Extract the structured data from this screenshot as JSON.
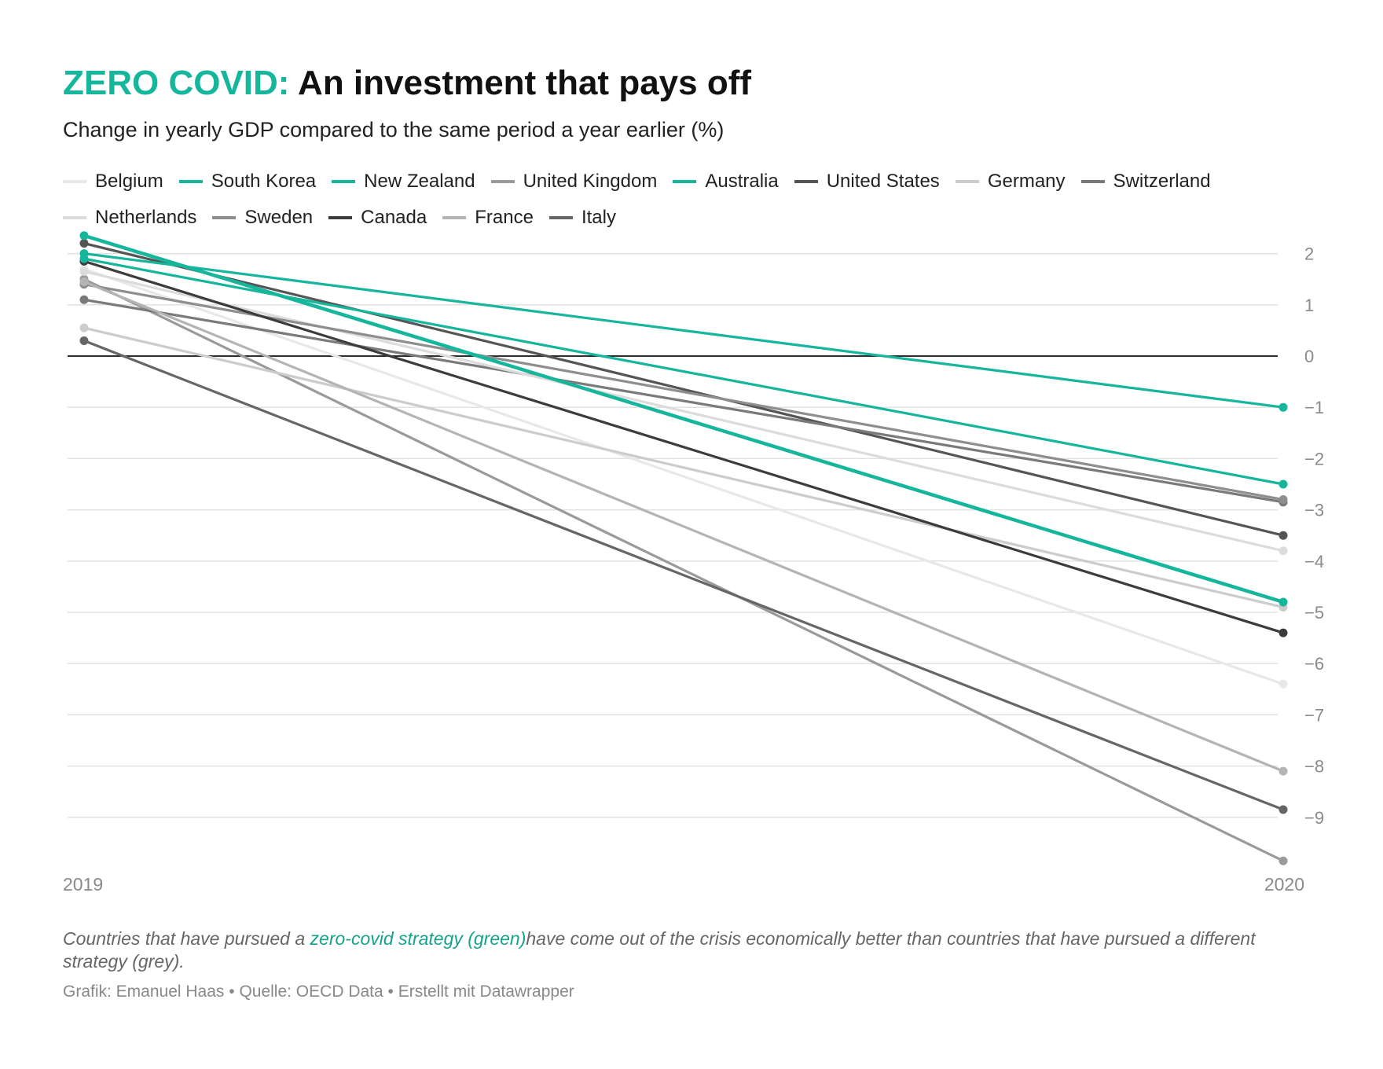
{
  "header": {
    "title_accent": "ZERO COVID:",
    "title_rest": " An investment that pays off",
    "subtitle": "Change in yearly GDP compared to the same period a year earlier (%)"
  },
  "legend_rows": [
    [
      "Belgium",
      "South Korea",
      "New Zealand",
      "United Kingdom",
      "Australia",
      "United States",
      "Germany",
      "Switzerland"
    ],
    [
      "Netherlands",
      "Sweden",
      "Canada",
      "France",
      "Italy"
    ]
  ],
  "notes": {
    "before": "Countries that have pursued a ",
    "highlight": "zero-covid strategy (green)",
    "after": "have come out of the crisis economically better than countries that have pursued a different strategy (grey)."
  },
  "byline": "Grafik: Emanuel Haas • Quelle: OECD Data • Erstellt mit Datawrapper",
  "chart_data": {
    "type": "line",
    "x": [
      "2019",
      "2020"
    ],
    "ylim": [
      -10,
      2.5
    ],
    "yticks": [
      2,
      1,
      0,
      -1,
      -2,
      -3,
      -4,
      -5,
      -6,
      -7,
      -8,
      -9
    ],
    "ytick_labels": [
      "2",
      "1",
      "0",
      "−1",
      "−2",
      "−3",
      "−4",
      "−5",
      "−6",
      "−7",
      "−8",
      "−9"
    ],
    "grid": true,
    "zero_line": true,
    "legend_position": "top",
    "series": [
      {
        "name": "Belgium",
        "color": "#e8e8e8",
        "values": [
          1.7,
          -6.4
        ]
      },
      {
        "name": "South Korea",
        "color": "#15b69b",
        "values": [
          2.0,
          -1.0
        ]
      },
      {
        "name": "New Zealand",
        "color": "#15b69b",
        "values": [
          2.35,
          -4.8
        ]
      },
      {
        "name": "United Kingdom",
        "color": "#9a9a9a",
        "values": [
          1.5,
          -9.85
        ]
      },
      {
        "name": "Australia",
        "color": "#15b69b",
        "values": [
          1.9,
          -2.5
        ]
      },
      {
        "name": "United States",
        "color": "#555555",
        "values": [
          2.2,
          -3.5
        ]
      },
      {
        "name": "Germany",
        "color": "#cccccc",
        "values": [
          0.55,
          -4.9
        ]
      },
      {
        "name": "Switzerland",
        "color": "#7a7a7a",
        "values": [
          1.1,
          -2.85
        ]
      },
      {
        "name": "Netherlands",
        "color": "#dcdcdc",
        "values": [
          1.65,
          -3.8
        ]
      },
      {
        "name": "Sweden",
        "color": "#8e8e8e",
        "values": [
          1.4,
          -2.8
        ]
      },
      {
        "name": "Canada",
        "color": "#3c3c3c",
        "values": [
          1.85,
          -5.4
        ]
      },
      {
        "name": "France",
        "color": "#b4b4b4",
        "values": [
          1.45,
          -8.1
        ]
      },
      {
        "name": "Italy",
        "color": "#666666",
        "values": [
          0.3,
          -8.85
        ]
      }
    ]
  }
}
